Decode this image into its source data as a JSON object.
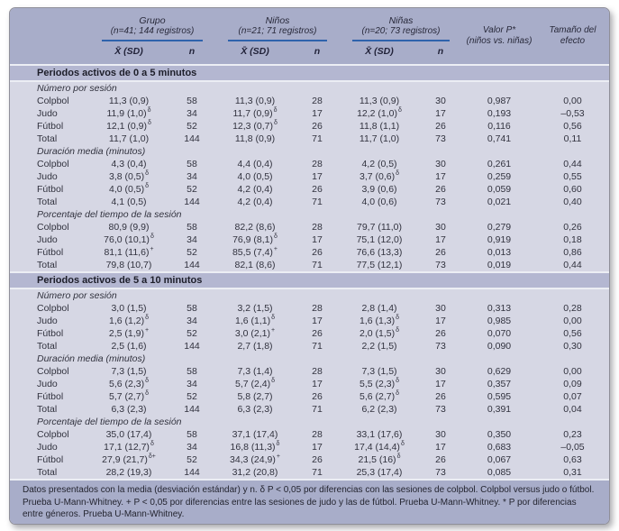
{
  "header": {
    "groups": [
      {
        "title": "Grupo",
        "subtitle": "(n=41; 144 registros)"
      },
      {
        "title": "Niños",
        "subtitle": "(n=21; 71 registros)"
      },
      {
        "title": "Niñas",
        "subtitle": "(n=20; 73 registros)"
      }
    ],
    "mean_label": "X̄ (SD)",
    "n_label": "n",
    "p_label": "Valor P*",
    "p_sublabel": "(niños vs. niñas)",
    "effect_label": "Tamaño del efecto"
  },
  "sections": [
    {
      "title": "Periodos activos de 0 a 5 minutos",
      "blocks": [
        {
          "label": "Número por sesión",
          "rows": [
            {
              "label": "Colpbol",
              "grupo": {
                "mean": "11,3 (0,9)",
                "sup": "",
                "n": "58"
              },
              "ninos": {
                "mean": "11,3 (0,9)",
                "sup": "",
                "n": "28"
              },
              "ninas": {
                "mean": "11,3 (0,9)",
                "sup": "",
                "n": "30"
              },
              "p": "0,987",
              "effect": "0,00"
            },
            {
              "label": "Judo",
              "grupo": {
                "mean": "11,9 (1,0)",
                "sup": "δ",
                "n": "34"
              },
              "ninos": {
                "mean": "11,7 (0,9)",
                "sup": "δ",
                "n": "17"
              },
              "ninas": {
                "mean": "12,2 (1,0)",
                "sup": "δ",
                "n": "17"
              },
              "p": "0,193",
              "effect": "–0,53"
            },
            {
              "label": "Fútbol",
              "grupo": {
                "mean": "12,1 (0,9)",
                "sup": "δ",
                "n": "52"
              },
              "ninos": {
                "mean": "12,3 (0,7)",
                "sup": "δ",
                "n": "26"
              },
              "ninas": {
                "mean": "11,8 (1,1)",
                "sup": "",
                "n": "26"
              },
              "p": "0,116",
              "effect": "0,56"
            },
            {
              "label": "Total",
              "grupo": {
                "mean": "11,7 (1,0)",
                "sup": "",
                "n": "144"
              },
              "ninos": {
                "mean": "11,8 (0,9)",
                "sup": "",
                "n": "71"
              },
              "ninas": {
                "mean": "11,7 (1,0)",
                "sup": "",
                "n": "73"
              },
              "p": "0,741",
              "effect": "0,11"
            }
          ]
        },
        {
          "label": "Duración media (minutos)",
          "rows": [
            {
              "label": "Colpbol",
              "grupo": {
                "mean": "4,3 (0,4)",
                "sup": "",
                "n": "58"
              },
              "ninos": {
                "mean": "4,4 (0,4)",
                "sup": "",
                "n": "28"
              },
              "ninas": {
                "mean": "4,2 (0,5)",
                "sup": "",
                "n": "30"
              },
              "p": "0,261",
              "effect": "0,44"
            },
            {
              "label": "Judo",
              "grupo": {
                "mean": "3,8 (0,5)",
                "sup": "δ",
                "n": "34"
              },
              "ninos": {
                "mean": "4,0 (0,5)",
                "sup": "",
                "n": "17"
              },
              "ninas": {
                "mean": "3,7 (0,6)",
                "sup": "δ",
                "n": "17"
              },
              "p": "0,259",
              "effect": "0,55"
            },
            {
              "label": "Fútbol",
              "grupo": {
                "mean": "4,0 (0,5)",
                "sup": "δ",
                "n": "52"
              },
              "ninos": {
                "mean": "4,2 (0,4)",
                "sup": "",
                "n": "26"
              },
              "ninas": {
                "mean": "3,9 (0,6)",
                "sup": "",
                "n": "26"
              },
              "p": "0,059",
              "effect": "0,60"
            },
            {
              "label": "Total",
              "grupo": {
                "mean": "4,1 (0,5)",
                "sup": "",
                "n": "144"
              },
              "ninos": {
                "mean": "4,2 (0,4)",
                "sup": "",
                "n": "71"
              },
              "ninas": {
                "mean": "4,0 (0,6)",
                "sup": "",
                "n": "73"
              },
              "p": "0,021",
              "effect": "0,40"
            }
          ]
        },
        {
          "label": "Porcentaje del tiempo de la sesión",
          "rows": [
            {
              "label": "Colpbol",
              "grupo": {
                "mean": "80,9 (9,9)",
                "sup": "",
                "n": "58"
              },
              "ninos": {
                "mean": "82,2 (8,6)",
                "sup": "",
                "n": "28"
              },
              "ninas": {
                "mean": "79,7 (11,0)",
                "sup": "",
                "n": "30"
              },
              "p": "0,279",
              "effect": "0,26"
            },
            {
              "label": "Judo",
              "grupo": {
                "mean": "76,0 (10,1)",
                "sup": "δ",
                "n": "34"
              },
              "ninos": {
                "mean": "76,9 (8,1)",
                "sup": "δ",
                "n": "17"
              },
              "ninas": {
                "mean": "75,1 (12,0)",
                "sup": "",
                "n": "17"
              },
              "p": "0,919",
              "effect": "0,18"
            },
            {
              "label": "Fútbol",
              "grupo": {
                "mean": "81,1 (11,6)",
                "sup": "+",
                "n": "52"
              },
              "ninos": {
                "mean": "85,5 (7,4)",
                "sup": "+",
                "n": "26"
              },
              "ninas": {
                "mean": "76,6 (13,3)",
                "sup": "",
                "n": "26"
              },
              "p": "0,013",
              "effect": "0,86"
            },
            {
              "label": "Total",
              "grupo": {
                "mean": "79,8 (10,7)",
                "sup": "",
                "n": "144"
              },
              "ninos": {
                "mean": "82,1 (8,6)",
                "sup": "",
                "n": "71"
              },
              "ninas": {
                "mean": "77,5 (12,1)",
                "sup": "",
                "n": "73"
              },
              "p": "0,019",
              "effect": "0,44"
            }
          ]
        }
      ]
    },
    {
      "title": "Periodos activos de 5 a 10 minutos",
      "blocks": [
        {
          "label": "Número por sesión",
          "rows": [
            {
              "label": "Colpbol",
              "grupo": {
                "mean": "3,0 (1,5)",
                "sup": "",
                "n": "58"
              },
              "ninos": {
                "mean": "3,2 (1,5)",
                "sup": "",
                "n": "28"
              },
              "ninas": {
                "mean": "2,8 (1,4)",
                "sup": "",
                "n": "30"
              },
              "p": "0,313",
              "effect": "0,28"
            },
            {
              "label": "Judo",
              "grupo": {
                "mean": "1,6 (1,2)",
                "sup": "δ",
                "n": "34"
              },
              "ninos": {
                "mean": "1,6 (1,1)",
                "sup": "δ",
                "n": "17"
              },
              "ninas": {
                "mean": "1,6 (1,3)",
                "sup": "δ",
                "n": "17"
              },
              "p": "0,985",
              "effect": "0,00"
            },
            {
              "label": "Fútbol",
              "grupo": {
                "mean": "2,5 (1,9)",
                "sup": "+",
                "n": "52"
              },
              "ninos": {
                "mean": "3,0 (2,1)",
                "sup": "+",
                "n": "26"
              },
              "ninas": {
                "mean": "2,0 (1,5)",
                "sup": "δ",
                "n": "26"
              },
              "p": "0,070",
              "effect": "0,56"
            },
            {
              "label": "Total",
              "grupo": {
                "mean": "2,5 (1,6)",
                "sup": "",
                "n": "144"
              },
              "ninos": {
                "mean": "2,7 (1,8)",
                "sup": "",
                "n": "71"
              },
              "ninas": {
                "mean": "2,2 (1,5)",
                "sup": "",
                "n": "73"
              },
              "p": "0,090",
              "effect": "0,30"
            }
          ]
        },
        {
          "label": "Duración media (minutos)",
          "rows": [
            {
              "label": "Colpbol",
              "grupo": {
                "mean": "7,3 (1,5)",
                "sup": "",
                "n": "58"
              },
              "ninos": {
                "mean": "7,3 (1,4)",
                "sup": "",
                "n": "28"
              },
              "ninas": {
                "mean": "7,3 (1,5)",
                "sup": "",
                "n": "30"
              },
              "p": "0,629",
              "effect": "0,00"
            },
            {
              "label": "Judo",
              "grupo": {
                "mean": "5,6 (2,3)",
                "sup": "δ",
                "n": "34"
              },
              "ninos": {
                "mean": "5,7 (2,4)",
                "sup": "δ",
                "n": "17"
              },
              "ninas": {
                "mean": "5,5 (2,3)",
                "sup": "δ",
                "n": "17"
              },
              "p": "0,357",
              "effect": "0,09"
            },
            {
              "label": "Fútbol",
              "grupo": {
                "mean": "5,7 (2,7)",
                "sup": "δ",
                "n": "52"
              },
              "ninos": {
                "mean": "5,8 (2,7)",
                "sup": "",
                "n": "26"
              },
              "ninas": {
                "mean": "5,6 (2,7)",
                "sup": "δ",
                "n": "26"
              },
              "p": "0,595",
              "effect": "0,07"
            },
            {
              "label": "Total",
              "grupo": {
                "mean": "6,3 (2,3)",
                "sup": "",
                "n": "144"
              },
              "ninos": {
                "mean": "6,3 (2,3)",
                "sup": "",
                "n": "71"
              },
              "ninas": {
                "mean": "6,2 (2,3)",
                "sup": "",
                "n": "73"
              },
              "p": "0,391",
              "effect": "0,04"
            }
          ]
        },
        {
          "label": "Porcentaje del tiempo de la sesión",
          "rows": [
            {
              "label": "Colpbol",
              "grupo": {
                "mean": "35,0 (17,4)",
                "sup": "",
                "n": "58"
              },
              "ninos": {
                "mean": "37,1 (17,4)",
                "sup": "",
                "n": "28"
              },
              "ninas": {
                "mean": "33,1 (17,6)",
                "sup": "",
                "n": "30"
              },
              "p": "0,350",
              "effect": "0,23"
            },
            {
              "label": "Judo",
              "grupo": {
                "mean": "17,1 (12,7)",
                "sup": "δ",
                "n": "34"
              },
              "ninos": {
                "mean": "16,8 (11,3)",
                "sup": "δ",
                "n": "17"
              },
              "ninas": {
                "mean": "17,4 (14,4)",
                "sup": "δ",
                "n": "17"
              },
              "p": "0,683",
              "effect": "–0,05"
            },
            {
              "label": "Fútbol",
              "grupo": {
                "mean": "27,9 (21,7)",
                "sup": "δ+",
                "n": "52"
              },
              "ninos": {
                "mean": "34,3 (24,9)",
                "sup": "+",
                "n": "26"
              },
              "ninas": {
                "mean": "21,5 (16)",
                "sup": "δ",
                "n": "26"
              },
              "p": "0,067",
              "effect": "0,63"
            },
            {
              "label": "Total",
              "grupo": {
                "mean": "28,2 (19,3)",
                "sup": "",
                "n": "144"
              },
              "ninos": {
                "mean": "31,2 (20,8)",
                "sup": "",
                "n": "71"
              },
              "ninas": {
                "mean": "25,3 (17,4)",
                "sup": "",
                "n": "73"
              },
              "p": "0,085",
              "effect": "0,31"
            }
          ]
        }
      ]
    }
  ],
  "footnote": "Datos presentados con la media (desviación estándar) y n. δ P < 0,05 por diferencias con las sesiones de colpbol. Colpbol versus judo o fútbol. Prueba U-Mann-Whitney. + P < 0,05 por diferencias entre las sesiones de judo y las de fútbol. Prueba U-Mann-Whitney. * P por diferencias entre géneros. Prueba U-Mann-Whitney."
}
